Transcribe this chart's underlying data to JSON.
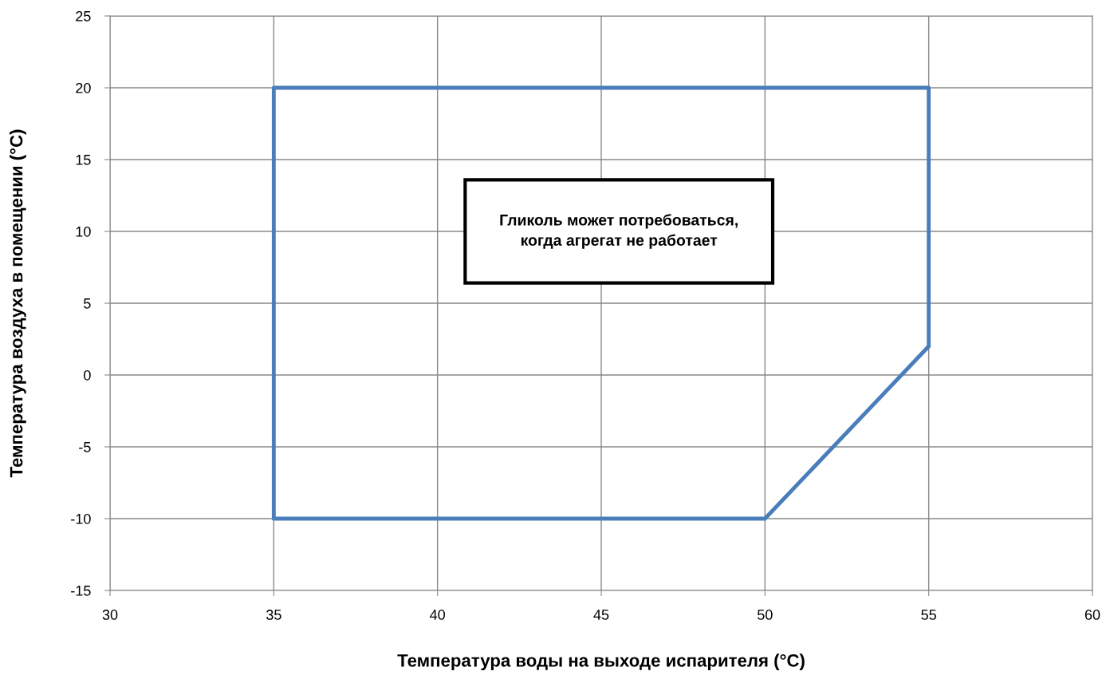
{
  "chart_data": {
    "type": "line",
    "xlabel": "Температура воды на выходе испарителя (°C)",
    "ylabel": "Температура воздуха в помещении (°C)",
    "annotations": [
      "Гликоль может потребоваться,\nкогда агрегат не работает"
    ],
    "series": [
      {
        "color": "#4a7ebb",
        "x": [
          35,
          35,
          55,
          55
        ],
        "values": [
          -10,
          20,
          20,
          2
        ]
      },
      {
        "color": "#4a7ebb",
        "x": [
          35,
          50,
          55
        ],
        "values": [
          -10,
          -10,
          2
        ]
      }
    ],
    "xlim": [
      30,
      60
    ],
    "xticks": [
      30,
      35,
      40,
      45,
      50,
      55,
      60
    ],
    "ylim": [
      -15,
      25
    ],
    "yticks": [
      -15,
      -10,
      -5,
      0,
      5,
      10,
      15,
      20,
      25
    ],
    "grid": true,
    "marker": "none",
    "line_style": "solid"
  }
}
